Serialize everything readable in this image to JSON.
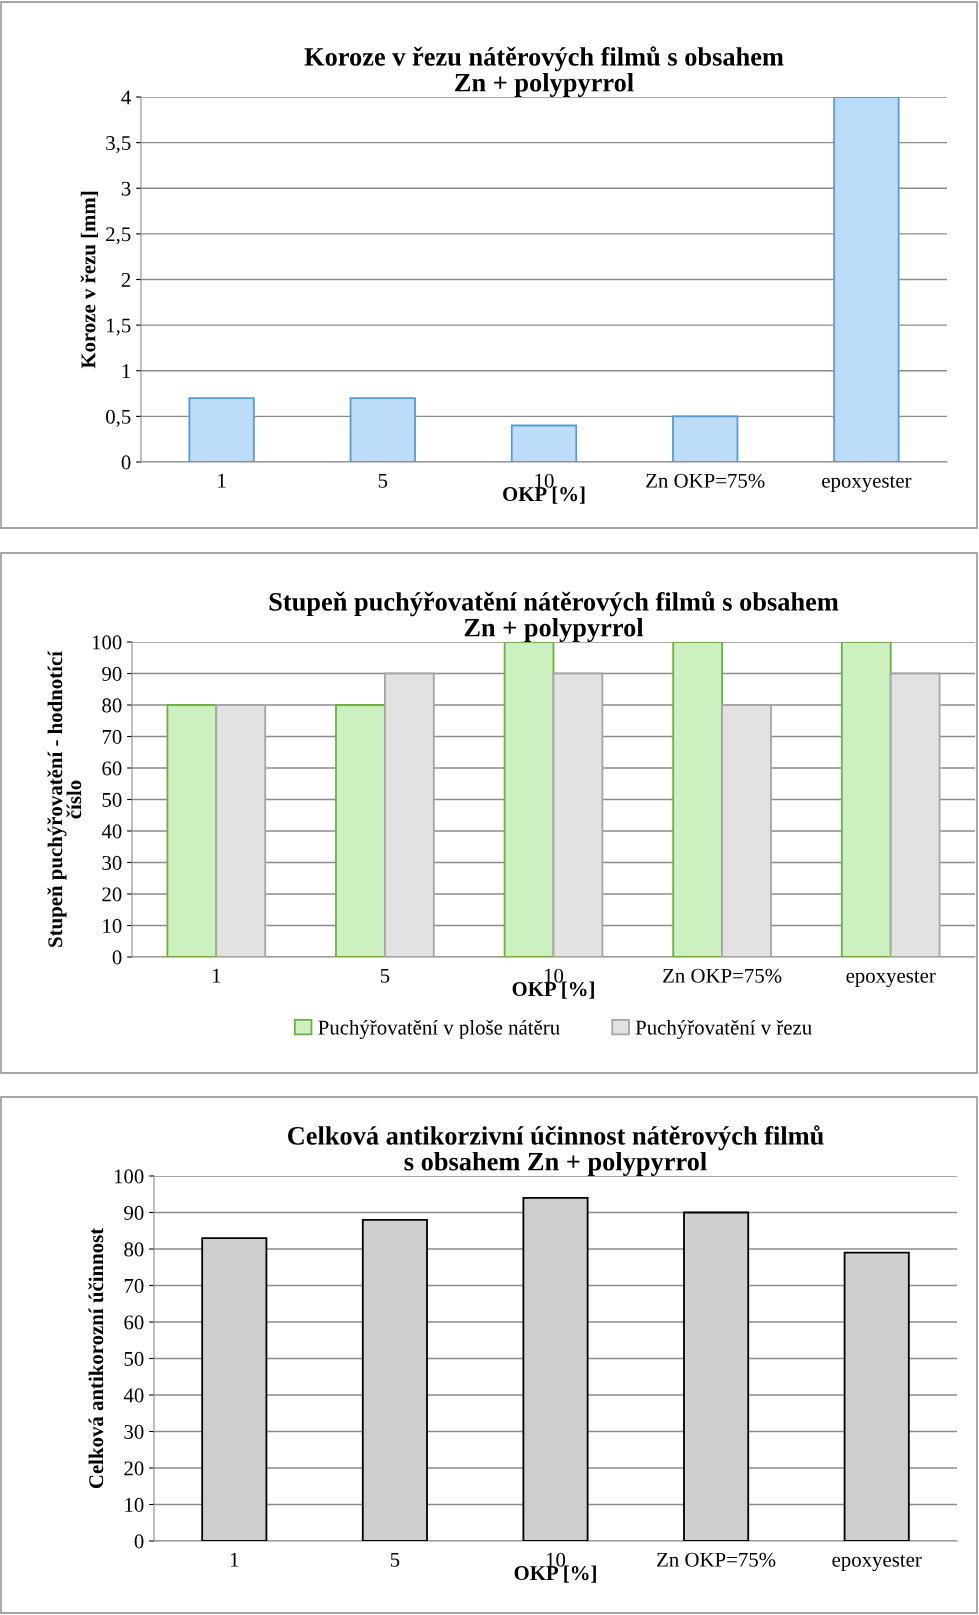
{
  "chart_data": [
    {
      "type": "bar",
      "title": "Koroze v řezu nátěrových filmů s obsahem\nZn + polypyrrol",
      "xlabel": "OKP [%]",
      "ylabel": "Koroze v řezu [mm]",
      "categories": [
        "1",
        "5",
        "10",
        "Zn OKP=75%",
        "epoxyester"
      ],
      "values": [
        0.7,
        0.7,
        0.4,
        0.5,
        4
      ],
      "color": "#bddcf7",
      "ylim": [
        0,
        4
      ],
      "yticks": [
        0,
        {
          "value": 0.5,
          "label": "0,5"
        },
        1,
        {
          "value": 1.5,
          "label": "1,5"
        },
        2,
        {
          "value": 2.5,
          "label": "2,5"
        },
        3,
        {
          "value": 3.5,
          "label": "3,5"
        },
        4
      ],
      "grid": "y"
    },
    {
      "type": "bar",
      "title": "Stupeň puchýřovatění nátěrových filmů s obsahem\nZn + polypyrrol",
      "xlabel": "OKP [%]",
      "ylabel": "Stupeň puchýřovatění - hodnotící\nčíslo",
      "categories": [
        "1",
        "5",
        "10",
        "Zn OKP=75%",
        "epoxyester"
      ],
      "series": [
        {
          "name": "Puchýřovatění v ploše nátěru",
          "color": "#cdf0c0",
          "values": [
            80,
            80,
            100,
            100,
            100
          ]
        },
        {
          "name": "Puchýřovatění v řezu",
          "color": "#e2e2e2",
          "values": [
            80,
            90,
            90,
            80,
            90
          ]
        }
      ],
      "ylim": [
        0,
        100
      ],
      "yticks": [
        0,
        10,
        20,
        30,
        40,
        50,
        60,
        70,
        80,
        90,
        100
      ],
      "grid": "y",
      "legend": "bottom"
    },
    {
      "type": "bar",
      "title": "Celková antikorzivní účinnost nátěrových filmů\ns obsahem Zn + polypyrrol",
      "xlabel": "OKP [%]",
      "ylabel": "Celková antikorozní účinnost",
      "categories": [
        "1",
        "5",
        "10",
        "Zn OKP=75%",
        "epoxyester"
      ],
      "values": [
        83,
        88,
        94,
        90,
        79
      ],
      "color": "#cfcfcf",
      "ylim": [
        0,
        100
      ],
      "yticks": [
        0,
        10,
        20,
        30,
        40,
        50,
        60,
        70,
        80,
        90,
        100
      ],
      "grid": "y"
    }
  ]
}
